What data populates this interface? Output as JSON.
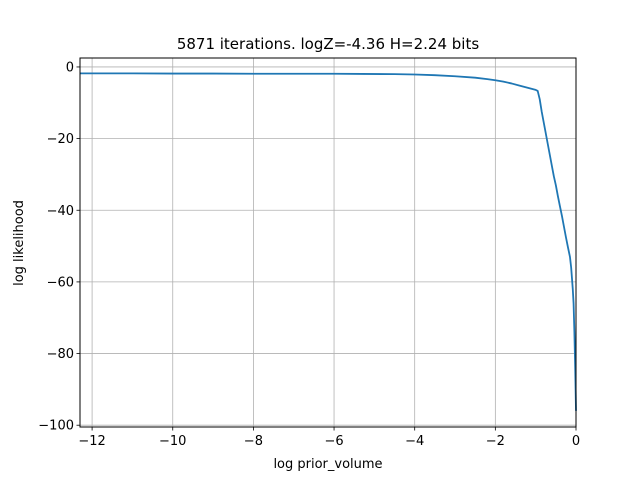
{
  "chart_data": {
    "type": "line",
    "title": "5871 iterations. logZ=-4.36 H=2.24 bits",
    "xlabel": "log prior_volume",
    "ylabel": "log likelihood",
    "xlim": [
      -12.3,
      0.0
    ],
    "ylim": [
      -100.5,
      2.5
    ],
    "grid": true,
    "x_ticks": [
      {
        "value": -12,
        "label": "−12"
      },
      {
        "value": -10,
        "label": "−10"
      },
      {
        "value": -8,
        "label": "−8"
      },
      {
        "value": -6,
        "label": "−6"
      },
      {
        "value": -4,
        "label": "−4"
      },
      {
        "value": -2,
        "label": "−2"
      },
      {
        "value": 0,
        "label": "0"
      }
    ],
    "y_ticks": [
      {
        "value": 0,
        "label": "0"
      },
      {
        "value": -20,
        "label": "−20"
      },
      {
        "value": -40,
        "label": "−40"
      },
      {
        "value": -60,
        "label": "−60"
      },
      {
        "value": -80,
        "label": "−80"
      },
      {
        "value": -100,
        "label": "−100"
      }
    ],
    "series": [
      {
        "color": "#1f77b4",
        "x": [
          -12.3,
          -11,
          -10,
          -9,
          -8,
          -7,
          -6,
          -5.3,
          -4.5,
          -4,
          -3.5,
          -3,
          -2.5,
          -2.2,
          -2,
          -1.8,
          -1.6,
          -1.4,
          -1.2,
          -1.0,
          -0.95,
          -0.9,
          -0.85,
          -0.8,
          -0.75,
          -0.7,
          -0.65,
          -0.6,
          -0.55,
          -0.5,
          -0.45,
          -0.4,
          -0.35,
          -0.3,
          -0.25,
          -0.2,
          -0.15,
          -0.12,
          -0.1,
          -0.08,
          -0.06,
          -0.05,
          -0.04,
          -0.03,
          -0.02,
          -0.01,
          0.0
        ],
        "y": [
          -1.8,
          -1.8,
          -1.85,
          -1.85,
          -1.9,
          -1.9,
          -1.9,
          -1.95,
          -2.0,
          -2.1,
          -2.3,
          -2.6,
          -3.0,
          -3.4,
          -3.7,
          -4.1,
          -4.6,
          -5.2,
          -5.8,
          -6.4,
          -6.7,
          -9,
          -12.5,
          -15.5,
          -18.5,
          -21.5,
          -24.5,
          -27.5,
          -30.5,
          -33,
          -36,
          -38.8,
          -41.5,
          -44.5,
          -47.5,
          -50.3,
          -53,
          -56,
          -59,
          -62,
          -66,
          -70,
          -74,
          -79,
          -84,
          -90,
          -96
        ]
      }
    ]
  }
}
